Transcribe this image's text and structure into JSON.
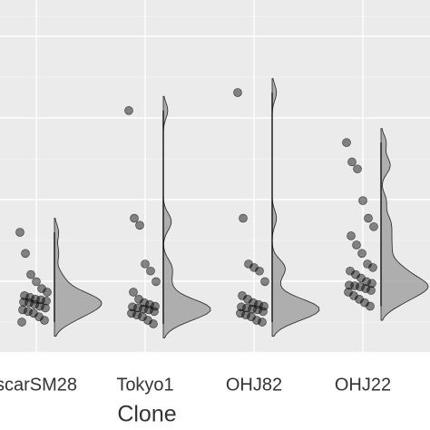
{
  "chart_data": {
    "type": "raincloud",
    "x_label": "Clone",
    "categories": [
      "scarSM28",
      "Tokyo1",
      "OHJ82",
      "OHJ22"
    ],
    "values": [
      [
        34,
        28,
        22,
        20,
        18,
        17,
        16,
        15.5,
        15,
        14.8,
        14.5,
        14.2,
        14,
        13.5,
        13,
        12.5,
        12,
        11.5,
        11,
        10,
        9,
        8.5
      ],
      [
        68.6,
        38,
        36,
        25,
        23,
        20,
        17,
        15,
        14,
        13.5,
        13,
        12.8,
        12.5,
        12.2,
        12,
        11.5,
        11,
        10.5,
        10,
        9,
        8
      ],
      [
        73.7,
        38,
        25,
        24,
        23,
        20,
        16,
        15,
        14,
        13.5,
        13,
        12.8,
        12.5,
        12.2,
        12,
        11.5,
        11,
        10.5,
        10,
        9,
        8.5
      ],
      [
        59.5,
        54,
        52,
        43,
        38,
        35.6,
        33,
        30.4,
        28,
        25,
        24,
        23,
        22,
        21,
        20,
        19.5,
        19,
        18.8,
        18.5,
        18,
        17.5,
        17,
        16,
        15,
        14,
        13
      ]
    ],
    "ylim": [
      0,
      100
    ],
    "grid": true
  }
}
